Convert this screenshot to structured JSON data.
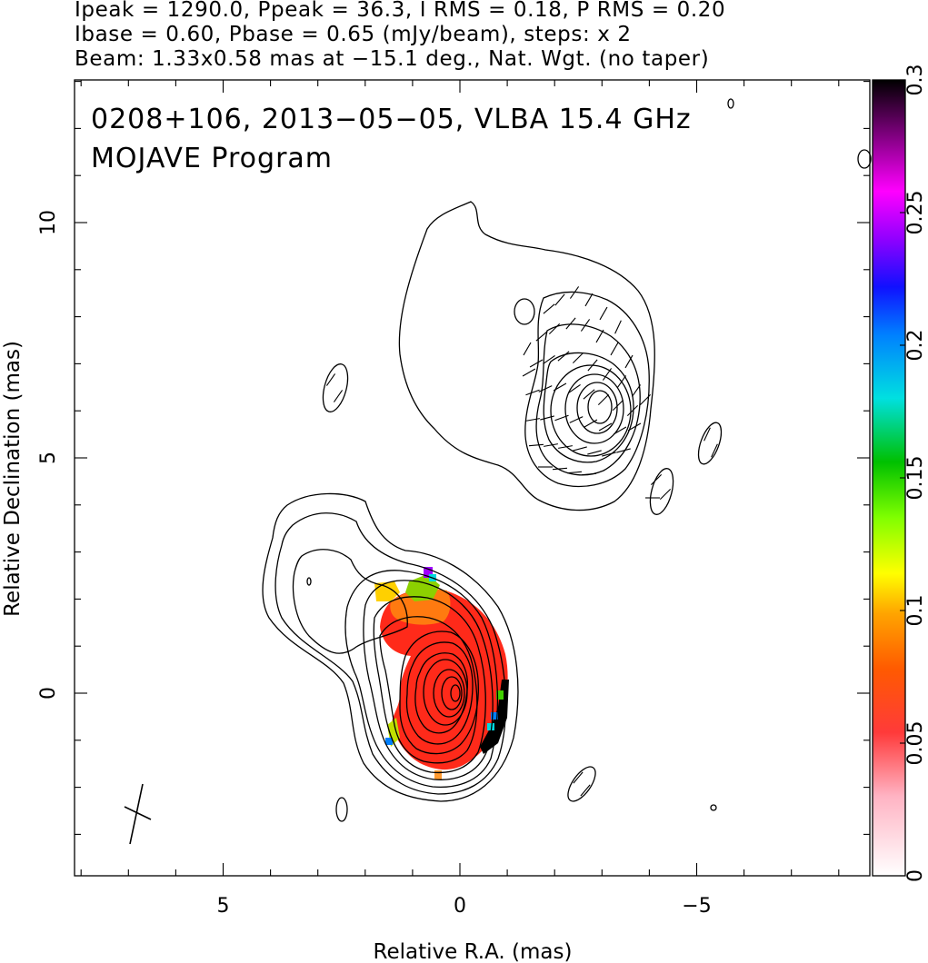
{
  "header": {
    "line1": "Ipeak = 1290.0, Ppeak = 36.3, I RMS = 0.18, P RMS = 0.20",
    "line2": "Ibase = 0.60, Pbase = 0.65 (mJy/beam), steps: x 2",
    "line3": "Beam: 1.33x0.58 mas at −15.1 deg., Nat. Wgt. (no taper)"
  },
  "panel": {
    "title": "0208+106, 2013−05−05, VLBA 15.4 GHz",
    "subtitle": "MOJAVE Program"
  },
  "chart_data": {
    "type": "heatmap",
    "xlabel": "Relative R.A. (mas)",
    "ylabel": "Relative Declination (mas)",
    "xlim": [
      8.1,
      -8.8
    ],
    "ylim": [
      -4.0,
      13.0
    ],
    "x_ticks": [
      5,
      0,
      -5
    ],
    "x_tick_labels": [
      "5",
      "0",
      "−5"
    ],
    "y_ticks": [
      0,
      5,
      10
    ],
    "y_tick_labels": [
      "0",
      "5",
      "10"
    ],
    "colorbar": {
      "range": [
        0,
        0.3
      ],
      "ticks": [
        0,
        0.05,
        0.1,
        0.15,
        0.2,
        0.25,
        0.3
      ],
      "tick_labels": [
        "0",
        "0.05",
        "0.1",
        "0.15",
        "0.2",
        "0.25",
        "0.3"
      ]
    },
    "intensity_peak": 1290.0,
    "polarization_peak": 36.3,
    "i_rms": 0.18,
    "p_rms": 0.2,
    "i_base": 0.6,
    "p_base": 0.65,
    "contour_step_factor": 2,
    "beam": {
      "major_mas": 1.33,
      "minor_mas": 0.58,
      "pa_deg": -15.1
    },
    "core": {
      "x": 0.0,
      "y": 0.0
    },
    "jet_knot": {
      "x": -2.9,
      "y": 6.1
    },
    "color_scale": [
      "#ffffff",
      "#ff9bb0",
      "#ff3a3a",
      "#ff6600",
      "#ffb000",
      "#ffff00",
      "#7fff00",
      "#00c800",
      "#00e0e0",
      "#0070ff",
      "#1010ff",
      "#9000ff",
      "#ff00ff",
      "#800080",
      "#000000"
    ]
  },
  "colors": {
    "frame": "#000000",
    "contour": "#000000",
    "background": "#ffffff"
  }
}
